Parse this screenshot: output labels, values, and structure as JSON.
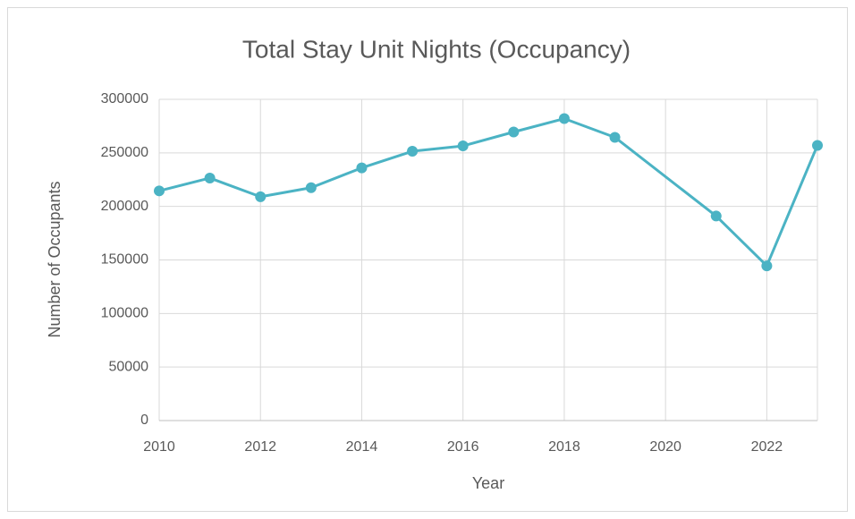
{
  "chart_data": {
    "type": "line",
    "title": "Total Stay Unit Nights (Occupancy)",
    "x_label": "Year",
    "y_label": "Number of Occupants",
    "x": [
      2010,
      2011,
      2012,
      2013,
      2014,
      2015,
      2016,
      2017,
      2018,
      2019,
      2021,
      2022,
      2023
    ],
    "series": [
      {
        "name": "Total Stay Unit Nights",
        "color": "#4bb3c4",
        "values": [
          214500,
          226500,
          209000,
          217500,
          236000,
          251500,
          256500,
          269500,
          282000,
          264500,
          191000,
          144500,
          257000
        ]
      }
    ],
    "xlim": [
      2010,
      2023
    ],
    "xticks": [
      2010,
      2012,
      2014,
      2016,
      2018,
      2020,
      2022
    ],
    "ylim": [
      0,
      300000
    ],
    "yticks": [
      0,
      50000,
      100000,
      150000,
      200000,
      250000,
      300000
    ],
    "grid": true
  }
}
